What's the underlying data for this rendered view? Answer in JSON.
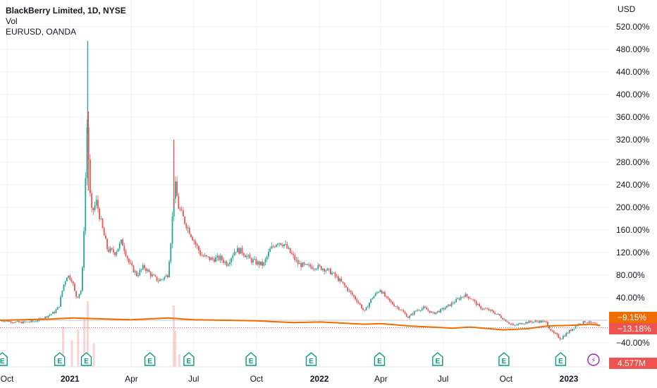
{
  "legend": {
    "title": "BlackBerry Limited, 1D, NYSE",
    "vol": "Vol",
    "compare": "EURUSD, OANDA"
  },
  "price_axis_label": "USD",
  "tags": {
    "eurusd": "−9.15%",
    "bb": "−13.18%",
    "volume": "4.577M"
  },
  "colors": {
    "up": "#26a69a",
    "down": "#ef5350",
    "eurusd_line": "#ef6c00",
    "grid": "#f0f3fa",
    "earnings": "#089981",
    "dividend": "#9c27b0"
  },
  "chart_data": {
    "type": "candlestick",
    "y_axis": {
      "unit": "percent",
      "ticks": [
        520,
        480,
        440,
        400,
        360,
        320,
        280,
        240,
        200,
        160,
        120,
        80,
        40,
        0,
        -40
      ],
      "tick_labels": [
        "520.00%",
        "480.00%",
        "440.00%",
        "400.00%",
        "360.00%",
        "320.00%",
        "280.00%",
        "240.00%",
        "200.00%",
        "160.00%",
        "120.00%",
        "80.00%",
        "40.00%",
        "",
        "−40.00%"
      ],
      "ylim": [
        -55,
        560
      ]
    },
    "x_axis": {
      "labels": [
        {
          "text": "Oct",
          "date": "2020-10-01",
          "bold": false
        },
        {
          "text": "2021",
          "date": "2021-01-01",
          "bold": true
        },
        {
          "text": "Apr",
          "date": "2021-04-01",
          "bold": false
        },
        {
          "text": "Jul",
          "date": "2021-07-01",
          "bold": false
        },
        {
          "text": "Oct",
          "date": "2021-10-01",
          "bold": false
        },
        {
          "text": "2022",
          "date": "2022-01-01",
          "bold": true
        },
        {
          "text": "Apr",
          "date": "2022-04-01",
          "bold": false
        },
        {
          "text": "Jul",
          "date": "2022-07-01",
          "bold": false
        },
        {
          "text": "Oct",
          "date": "2022-10-01",
          "bold": false
        },
        {
          "text": "2023",
          "date": "2023-01-01",
          "bold": true
        }
      ],
      "range": [
        "2020-10-01",
        "2023-02-28"
      ]
    },
    "series": [
      {
        "name": "BlackBerry Limited, 1D, NYSE",
        "style": "candles",
        "points": [
          {
            "date": "2020-09-21",
            "pct": 0
          },
          {
            "date": "2020-10-20",
            "pct": -4
          },
          {
            "date": "2020-11-10",
            "pct": -2
          },
          {
            "date": "2020-11-25",
            "pct": 5
          },
          {
            "date": "2020-12-10",
            "pct": 15
          },
          {
            "date": "2020-12-16",
            "pct": 25
          },
          {
            "date": "2020-12-22",
            "pct": 60
          },
          {
            "date": "2020-12-28",
            "pct": 80
          },
          {
            "date": "2021-01-04",
            "pct": 72
          },
          {
            "date": "2021-01-08",
            "pct": 50
          },
          {
            "date": "2021-01-11",
            "pct": 40
          },
          {
            "date": "2021-01-18",
            "pct": 55
          },
          {
            "date": "2021-01-20",
            "pct": 110
          },
          {
            "date": "2021-01-22",
            "pct": 180
          },
          {
            "date": "2021-01-25",
            "pct": 300
          },
          {
            "date": "2021-01-27",
            "pct": 380
          },
          {
            "date": "2021-01-29",
            "pct": 240
          },
          {
            "date": "2021-02-02",
            "pct": 190
          },
          {
            "date": "2021-02-09",
            "pct": 210
          },
          {
            "date": "2021-02-16",
            "pct": 170
          },
          {
            "date": "2021-02-25",
            "pct": 125
          },
          {
            "date": "2021-03-08",
            "pct": 120
          },
          {
            "date": "2021-03-18",
            "pct": 140
          },
          {
            "date": "2021-03-29",
            "pct": 100
          },
          {
            "date": "2021-04-09",
            "pct": 80
          },
          {
            "date": "2021-04-19",
            "pct": 95
          },
          {
            "date": "2021-04-30",
            "pct": 80
          },
          {
            "date": "2021-05-11",
            "pct": 70
          },
          {
            "date": "2021-05-24",
            "pct": 80
          },
          {
            "date": "2021-05-28",
            "pct": 130
          },
          {
            "date": "2021-06-02",
            "pct": 220
          },
          {
            "date": "2021-06-04",
            "pct": 240
          },
          {
            "date": "2021-06-09",
            "pct": 200
          },
          {
            "date": "2021-06-18",
            "pct": 175
          },
          {
            "date": "2021-06-30",
            "pct": 145
          },
          {
            "date": "2021-07-12",
            "pct": 115
          },
          {
            "date": "2021-07-26",
            "pct": 108
          },
          {
            "date": "2021-08-09",
            "pct": 110
          },
          {
            "date": "2021-08-19",
            "pct": 100
          },
          {
            "date": "2021-08-31",
            "pct": 125
          },
          {
            "date": "2021-09-10",
            "pct": 122
          },
          {
            "date": "2021-09-21",
            "pct": 108
          },
          {
            "date": "2021-10-01",
            "pct": 102
          },
          {
            "date": "2021-10-11",
            "pct": 98
          },
          {
            "date": "2021-10-21",
            "pct": 125
          },
          {
            "date": "2021-11-01",
            "pct": 140
          },
          {
            "date": "2021-11-10",
            "pct": 135
          },
          {
            "date": "2021-11-19",
            "pct": 120
          },
          {
            "date": "2021-12-01",
            "pct": 100
          },
          {
            "date": "2021-12-13",
            "pct": 95
          },
          {
            "date": "2021-12-27",
            "pct": 95
          },
          {
            "date": "2022-01-07",
            "pct": 92
          },
          {
            "date": "2022-01-18",
            "pct": 85
          },
          {
            "date": "2022-01-31",
            "pct": 70
          },
          {
            "date": "2022-02-11",
            "pct": 55
          },
          {
            "date": "2022-02-25",
            "pct": 35
          },
          {
            "date": "2022-03-08",
            "pct": 15
          },
          {
            "date": "2022-03-18",
            "pct": 38
          },
          {
            "date": "2022-03-31",
            "pct": 55
          },
          {
            "date": "2022-04-08",
            "pct": 40
          },
          {
            "date": "2022-04-19",
            "pct": 28
          },
          {
            "date": "2022-04-29",
            "pct": 20
          },
          {
            "date": "2022-05-11",
            "pct": 5
          },
          {
            "date": "2022-05-23",
            "pct": 18
          },
          {
            "date": "2022-06-03",
            "pct": 22
          },
          {
            "date": "2022-06-16",
            "pct": 12
          },
          {
            "date": "2022-06-28",
            "pct": 18
          },
          {
            "date": "2022-07-08",
            "pct": 25
          },
          {
            "date": "2022-07-20",
            "pct": 35
          },
          {
            "date": "2022-08-01",
            "pct": 45
          },
          {
            "date": "2022-08-12",
            "pct": 38
          },
          {
            "date": "2022-08-24",
            "pct": 22
          },
          {
            "date": "2022-09-06",
            "pct": 18
          },
          {
            "date": "2022-09-19",
            "pct": 10
          },
          {
            "date": "2022-09-30",
            "pct": 0
          },
          {
            "date": "2022-10-12",
            "pct": -10
          },
          {
            "date": "2022-10-24",
            "pct": -5
          },
          {
            "date": "2022-11-04",
            "pct": -3
          },
          {
            "date": "2022-11-16",
            "pct": -2
          },
          {
            "date": "2022-11-28",
            "pct": -3
          },
          {
            "date": "2022-12-08",
            "pct": -22
          },
          {
            "date": "2022-12-20",
            "pct": -32
          },
          {
            "date": "2023-01-03",
            "pct": -18
          },
          {
            "date": "2023-01-13",
            "pct": -8
          },
          {
            "date": "2023-01-25",
            "pct": -2
          },
          {
            "date": "2023-02-06",
            "pct": -6
          },
          {
            "date": "2023-02-16",
            "pct": -13
          }
        ]
      },
      {
        "name": "EURUSD, OANDA",
        "style": "line",
        "points": [
          {
            "date": "2020-09-21",
            "pct": 0
          },
          {
            "date": "2020-12-01",
            "pct": 2
          },
          {
            "date": "2021-01-06",
            "pct": 4
          },
          {
            "date": "2021-03-31",
            "pct": 1
          },
          {
            "date": "2021-05-25",
            "pct": 4
          },
          {
            "date": "2021-07-01",
            "pct": 1
          },
          {
            "date": "2021-10-01",
            "pct": -1
          },
          {
            "date": "2021-11-24",
            "pct": -4
          },
          {
            "date": "2022-01-03",
            "pct": -3
          },
          {
            "date": "2022-03-07",
            "pct": -7
          },
          {
            "date": "2022-04-01",
            "pct": -6
          },
          {
            "date": "2022-05-12",
            "pct": -10
          },
          {
            "date": "2022-07-14",
            "pct": -14
          },
          {
            "date": "2022-08-10",
            "pct": -12
          },
          {
            "date": "2022-09-27",
            "pct": -17
          },
          {
            "date": "2022-11-01",
            "pct": -15
          },
          {
            "date": "2022-12-01",
            "pct": -10
          },
          {
            "date": "2023-01-02",
            "pct": -9
          },
          {
            "date": "2023-02-02",
            "pct": -7
          },
          {
            "date": "2023-02-16",
            "pct": -9.15
          }
        ]
      },
      {
        "name": "Vol",
        "style": "histogram",
        "points": [
          {
            "date": "2020-12-22",
            "value": 0.38
          },
          {
            "date": "2021-01-04",
            "value": 0.25
          },
          {
            "date": "2021-01-13",
            "value": 0.35
          },
          {
            "date": "2021-01-22",
            "value": 0.45
          },
          {
            "date": "2021-01-27",
            "value": 0.62
          },
          {
            "date": "2021-02-05",
            "value": 0.22
          },
          {
            "date": "2021-06-02",
            "value": 0.58
          },
          {
            "date": "2021-06-04",
            "value": 0.34
          },
          {
            "date": "2021-06-10",
            "value": 0.12
          }
        ]
      }
    ],
    "markers": [
      {
        "type": "earnings",
        "label": "E",
        "date": "2020-09-24"
      },
      {
        "type": "earnings",
        "label": "E",
        "date": "2020-12-17"
      },
      {
        "type": "earnings",
        "label": "E",
        "date": "2021-01-25"
      },
      {
        "type": "earnings",
        "label": "E",
        "date": "2021-04-28"
      },
      {
        "type": "earnings",
        "label": "E",
        "date": "2021-06-24"
      },
      {
        "type": "earnings",
        "label": "E",
        "date": "2021-09-23"
      },
      {
        "type": "earnings",
        "label": "E",
        "date": "2021-12-20"
      },
      {
        "type": "earnings",
        "label": "E",
        "date": "2022-03-30"
      },
      {
        "type": "earnings",
        "label": "E",
        "date": "2022-06-23"
      },
      {
        "type": "earnings",
        "label": "E",
        "date": "2022-09-28"
      },
      {
        "type": "earnings",
        "label": "E",
        "date": "2022-12-20"
      },
      {
        "type": "split",
        "label": "⚡",
        "date": "2023-02-06"
      }
    ],
    "last_values": {
      "BlackBerry": -13.18,
      "EURUSD": -9.15
    }
  }
}
